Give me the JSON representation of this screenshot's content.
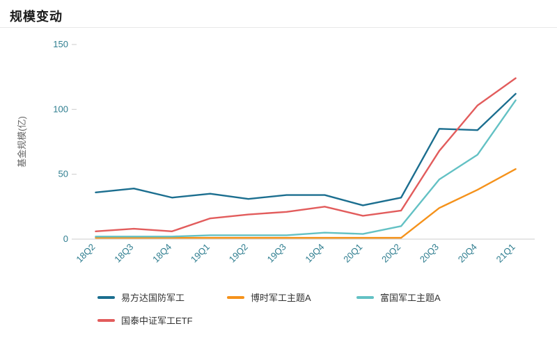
{
  "header": {
    "title": "规模变动"
  },
  "chart_data": {
    "type": "line",
    "title": "规模变动",
    "xlabel": "",
    "ylabel": "基金规模(亿)",
    "ylim": [
      0,
      150
    ],
    "yticks": [
      0,
      50,
      100,
      150
    ],
    "grid": false,
    "legend_position": "bottom",
    "categories": [
      "18Q2",
      "18Q3",
      "18Q4",
      "19Q1",
      "19Q2",
      "19Q3",
      "19Q4",
      "20Q1",
      "20Q2",
      "20Q3",
      "20Q4",
      "21Q1"
    ],
    "series": [
      {
        "name": "易方达国防军工",
        "color": "#1b6e8f",
        "values": [
          36,
          39,
          32,
          35,
          31,
          34,
          34,
          26,
          32,
          85,
          84,
          112
        ]
      },
      {
        "name": "博时军工主题A",
        "color": "#f5921b",
        "values": [
          1,
          1,
          1,
          1,
          1,
          1,
          1,
          1,
          1,
          24,
          38,
          54
        ]
      },
      {
        "name": "富国军工主题A",
        "color": "#63c1c4",
        "values": [
          2,
          2,
          2,
          3,
          3,
          3,
          5,
          4,
          10,
          46,
          65,
          107
        ]
      },
      {
        "name": "国泰中证军工ETF",
        "color": "#e25c5c",
        "values": [
          6,
          8,
          6,
          16,
          19,
          21,
          25,
          18,
          22,
          68,
          103,
          124
        ]
      }
    ]
  },
  "colors": {
    "divider": "#e8e8e8",
    "axis_line": "#cccccc",
    "axis_tick_label": "#2e7d8f",
    "axis_name": "#666666",
    "legend_text": "#333333"
  }
}
